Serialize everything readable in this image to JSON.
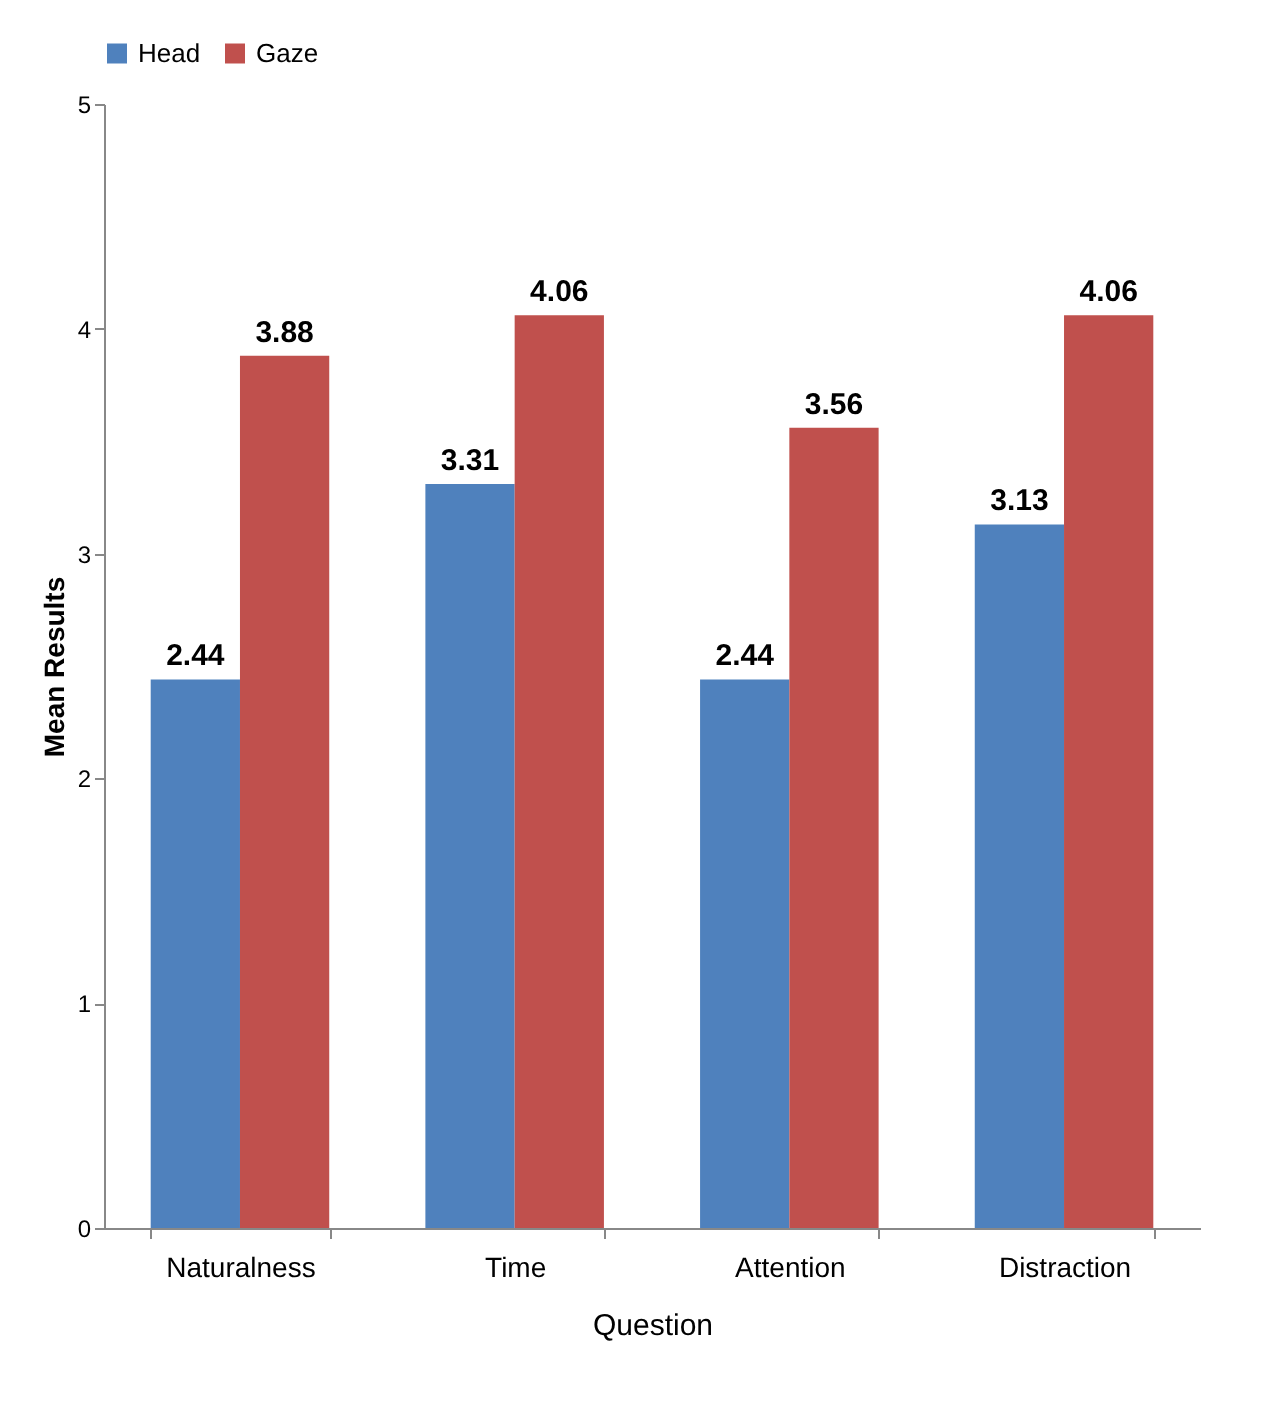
{
  "chart_data": {
    "type": "bar",
    "xlabel": "Question",
    "ylabel": "Mean Results",
    "categories": [
      "Naturalness",
      "Time",
      "Attention",
      "Distraction"
    ],
    "series": [
      {
        "name": "Head",
        "color": "#4f81bd",
        "values": [
          2.44,
          3.31,
          2.44,
          3.13
        ]
      },
      {
        "name": "Gaze",
        "color": "#c0504d",
        "values": [
          3.88,
          4.06,
          3.56,
          4.06
        ]
      }
    ],
    "ylim": [
      0,
      5
    ],
    "yticks": [
      0,
      1,
      2,
      3,
      4,
      5
    ],
    "grid": false,
    "legend": "top",
    "data_labels": true
  }
}
